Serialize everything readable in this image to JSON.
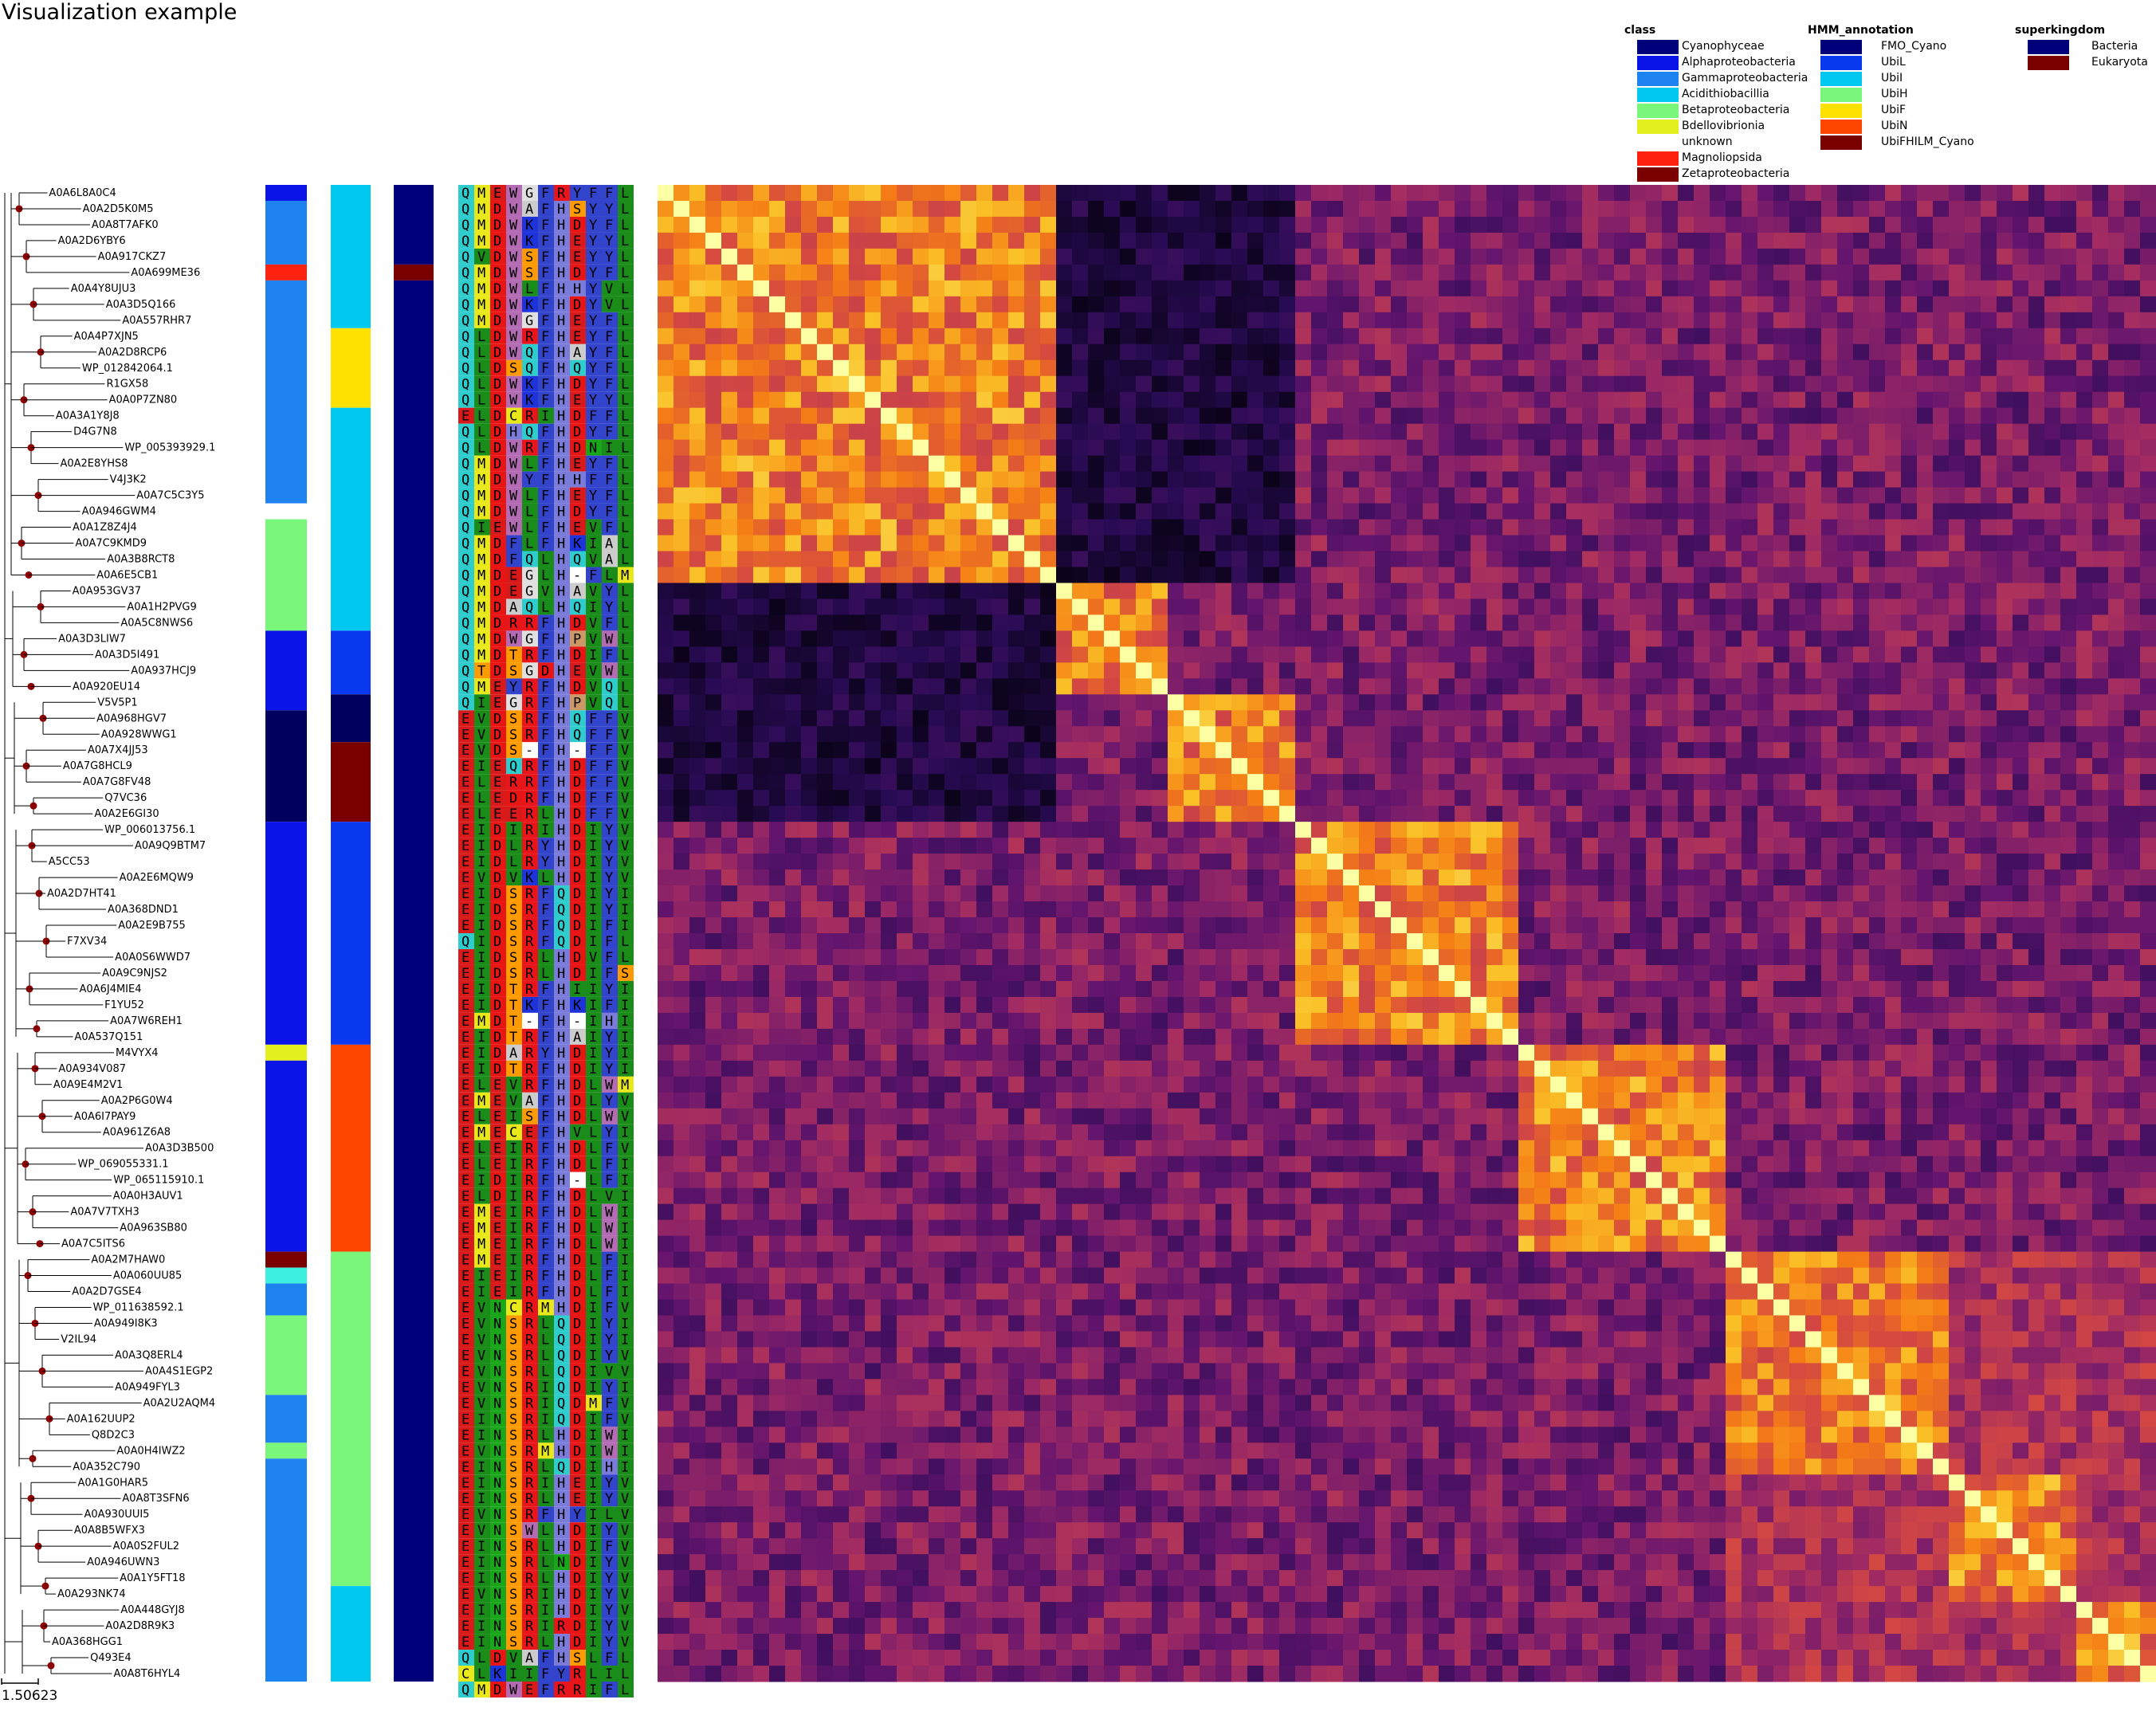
{
  "title": "Visualization example",
  "scale_label": "1.50623",
  "leaves": [
    "A0A6L8A0C4",
    "A0A2D5K0M5",
    "A0A8T7AFK0",
    "A0A2D6YBY6",
    "A0A917CKZ7",
    "A0A699ME36",
    "A0A4Y8UJU3",
    "A0A3D5Q166",
    "A0A557RHR7",
    "A0A4P7XJN5",
    "A0A2D8RCP6",
    "WP_012842064.1",
    "R1GX58",
    "A0A0P7ZN80",
    "A0A3A1Y8J8",
    "D4G7N8",
    "WP_005393929.1",
    "A0A2E8YHS8",
    "V4J3K2",
    "A0A7C5C3Y5",
    "A0A946GWM4",
    "A0A1Z8Z4J4",
    "A0A7C9KMD9",
    "A0A3B8RCT8",
    "A0A6E5CB1",
    "A0A953GV37",
    "A0A1H2PVG9",
    "A0A5C8NWS6",
    "A0A3D3LIW7",
    "A0A3D5I491",
    "A0A937HCJ9",
    "A0A920EU14",
    "V5V5P1",
    "A0A968HGV7",
    "A0A928WWG1",
    "A0A7X4JJ53",
    "A0A7G8HCL9",
    "A0A7G8FV48",
    "Q7VC36",
    "A0A2E6GI30",
    "WP_006013756.1",
    "A0A9Q9BTM7",
    "A5CC53",
    "A0A2E6MQW9",
    "A0A2D7HT41",
    "A0A368DND1",
    "A0A2E9B755",
    "F7XV34",
    "A0A0S6WWD7",
    "A0A9C9NJS2",
    "A0A6J4MIE4",
    "F1YU52",
    "A0A7W6REH1",
    "A0A537Q151",
    "M4VYX4",
    "A0A934V087",
    "A0A9E4M2V1",
    "A0A2P6G0W4",
    "A0A6I7PAY9",
    "A0A961Z6A8",
    "A0A3D3B500",
    "WP_069055331.1",
    "WP_065115910.1",
    "A0A0H3AUV1",
    "A0A7V7TXH3",
    "A0A963SB80",
    "A0A7C5ITS6",
    "A0A2M7HAW0",
    "A0A060UU85",
    "A0A2D7GSE4",
    "WP_011638592.1",
    "A0A949I8K3",
    "V2IL94",
    "A0A3Q8ERL4",
    "A0A4S1EGP2",
    "A0A949FYL3",
    "A0A2U2AQM4",
    "A0A162UUP2",
    "Q8D2C3",
    "A0A0H4IWZ2",
    "A0A352C790",
    "A0A1G0HAR5",
    "A0A8T3SFN6",
    "A0A930UUI5",
    "A0A8B5WFX3",
    "A0A0S2FUL2",
    "A0A946UWN3",
    "A0A1Y5FT18",
    "A0A293NK74",
    "A0A448GYJ8",
    "A0A2D8R9K3",
    "A0A368HGG1",
    "Q493E4",
    "A0A8T6HYL4"
  ],
  "alignment": [
    "QMEWGFRYFFL",
    "QMDWAFHSYYL",
    "QMDWKFHDYFL",
    "QMDWKFHEYYL",
    "QVDWSFHEYYL",
    "QMDWSFHDYFL",
    "QMDWLFHHYVL",
    "QMDWKFHDYVL",
    "QMDWGFHEYFL",
    "QLDWRFHEYFL",
    "QLDWQFHAYFL",
    "QLDSQFHQYFL",
    "QLDWKFHDYFL",
    "QLDWKFHEYYL",
    "ELDCRIHDFFL",
    "QLDHQFHDYFL",
    "QLDWRFHDNIL",
    "QMDWLFHEYFL",
    "QMDWYFHHFFL",
    "QMDWLFHEYFL",
    "QMDWLFHDYFL",
    "QIEWLFHEVFL",
    "QMDFLFHKIAL",
    "QMDFQLHQVAL",
    "QMDEGLH-FLM",
    "QMDEGVHAVYL",
    "QMDAQLHQIYL",
    "QMDRRFHDVFL",
    "QMDWGFHPVWL",
    "QMDTRFHDIFL",
    "QTDSGDHEVWL",
    "QMEYRFHDVQL",
    "QIEGRFHPVQL",
    "EVDSRFHQFFV",
    "EVDSRFHQFFV",
    "EVDS-FH-FFV",
    "EIEQRFHDFFV",
    "ELERRFHDFFV",
    "ELEDRFHDFFV",
    "ELEERLHDFFV",
    "EIDIRIHDIYV",
    "EIDLRYHDIYV",
    "EIDLRYHDIYV",
    "EVDVKLHDIYV",
    "EIDSRFQDIYI",
    "EIDSRFQDIYI",
    "EIDSRFQDIFI",
    "QIDSRFQDIFL",
    "EIDSRLHDVFL",
    "EIDSRLHDIFS",
    "EIDTRFHIIYI",
    "EIDTKFHKIFI",
    "EMDT-FH-IHI",
    "EIDTRFHAIYI",
    "EIDARYHDIYI",
    "EIDTRFHDIYI",
    "ELEVRFHDLWM",
    "EMEVAFHDLYV",
    "ELEISFHDLWV",
    "EMECEFHVLYI",
    "ELEIRFHDLFV",
    "ELEIRFHDLFI",
    "EIDIRFH-LFI",
    "ELDIRFHDLVI",
    "EMEIRFHDLWI",
    "EMEIRFHDLWI",
    "EMEIRFHDLWI",
    "EMEIRFHDLFI",
    "EIEIRFHDLFI",
    "EIEIRFHDLFI",
    "EVNCRMHDIFV",
    "EVNSRLQDIYI",
    "EVNSRLQDIYI",
    "EVNSRLQDIYV",
    "EVNSRLQDIVV",
    "EVNSRIQDIYI",
    "EVNSRIQDMFV",
    "EINSRIQDIFV",
    "EINSRLHDIWI",
    "EVNSRMHDIWI",
    "EINSRLQDIHI",
    "EINSRIHEIYV",
    "EINSRLHEIYV",
    "EVNSRFHYILV",
    "EVNSWLHDIYV",
    "EINSRLHDIFV",
    "EINSRLNDIYV",
    "EINSRLHDIYV",
    "EVNSRIHDIYV",
    "EINSRIHDIYV",
    "EINSRIRDIYV",
    "EINSRLHDIYV",
    "QLDVAFHSLFL",
    "CLKIIFYRLIL",
    "QMDWEFRRIFL"
  ],
  "bars": {
    "class": [
      [
        0,
        0.99
      ],
      [
        1,
        4.99
      ],
      [
        5,
        5.99
      ],
      [
        6,
        19.99
      ],
      [
        21,
        27.99
      ],
      [
        28,
        32.99
      ],
      [
        33,
        39.99
      ],
      [
        40,
        53.99
      ],
      [
        54,
        54.99
      ],
      [
        55,
        66.99
      ],
      [
        67,
        67.99
      ],
      [
        68,
        68.99
      ],
      [
        69,
        70.99
      ],
      [
        71,
        75.99
      ],
      [
        76,
        78.99
      ],
      [
        79,
        79.99
      ],
      [
        80,
        93.99
      ]
    ],
    "class_colors": [
      "#0a14e8",
      "#1e82f0",
      "#ff2210",
      "#1e82f0",
      "#7af77a",
      "#0a14e8",
      "#00005e",
      "#0a14e8",
      "#e3f020",
      "#0a14e8",
      "#7a0000",
      "#3cf0e0",
      "#1e82f0",
      "#7af77a",
      "#1e82f0",
      "#7af77a",
      "#1e82f0"
    ],
    "hmm": [
      [
        0,
        8.99
      ],
      [
        9,
        13.99
      ],
      [
        14,
        27.99
      ],
      [
        28,
        31.99
      ],
      [
        32,
        34.99
      ],
      [
        35,
        39.99
      ],
      [
        40,
        53.99
      ],
      [
        54,
        66.99
      ],
      [
        67,
        87.99
      ],
      [
        88,
        93.99
      ]
    ],
    "hmm_colors": [
      "#00c8f0",
      "#ffe100",
      "#00c8f0",
      "#0a3af0",
      "#00005e",
      "#7a0000",
      "#0a3af0",
      "#ff4600",
      "#7af77a",
      "#00c8f0"
    ],
    "kingdom": [
      [
        0,
        4.99
      ],
      [
        5,
        5.99
      ],
      [
        6,
        93.99
      ]
    ],
    "kingdom_colors": [
      "#00007a",
      "#7a0000",
      "#00007a"
    ]
  },
  "legend": {
    "class": {
      "title": "class",
      "items": [
        {
          "label": "Cyanophyceae",
          "color": "#00007a"
        },
        {
          "label": "Alphaproteobacteria",
          "color": "#0a14e8"
        },
        {
          "label": "Gammaproteobacteria",
          "color": "#1e82f0"
        },
        {
          "label": "Acidithiobacillia",
          "color": "#00c8f0"
        },
        {
          "label": "Betaproteobacteria",
          "color": "#7af77a"
        },
        {
          "label": "Bdellovibrionia",
          "color": "#e3f020"
        },
        {
          "label": "unknown",
          "color": "#ffffff"
        },
        {
          "label": "Magnoliopsida",
          "color": "#ff2210"
        },
        {
          "label": "Zetaproteobacteria",
          "color": "#7a0000"
        }
      ]
    },
    "hmm": {
      "title": "HMM_annotation",
      "items": [
        {
          "label": "FMO_Cyano",
          "color": "#00007a"
        },
        {
          "label": "UbiL",
          "color": "#0a3af0"
        },
        {
          "label": "UbiI",
          "color": "#00c8f0"
        },
        {
          "label": "UbiH",
          "color": "#7af77a"
        },
        {
          "label": "UbiF",
          "color": "#ffe100"
        },
        {
          "label": "UbiN",
          "color": "#ff4600"
        },
        {
          "label": "UbiFHILM_Cyano",
          "color": "#7a0000"
        }
      ]
    },
    "kingdom": {
      "title": "superkingdom",
      "items": [
        {
          "label": "Bacteria",
          "color": "#00007a"
        },
        {
          "label": "Eukaryota",
          "color": "#7a0000"
        }
      ]
    }
  },
  "heatmap_blocks": [
    [
      0,
      24
    ],
    [
      25,
      31
    ],
    [
      32,
      39
    ],
    [
      40,
      53
    ],
    [
      54,
      66
    ],
    [
      67,
      80
    ],
    [
      81,
      88
    ],
    [
      89,
      93
    ]
  ],
  "colors": {
    "aa_R": "#e8151a",
    "aa_K": "#1e33d9",
    "aa_H": "#7b7bd9",
    "aa_D": "#e81515",
    "aa_E": "#d91a1a",
    "aa_S": "#ff9a00",
    "aa_T": "#ff9a00",
    "aa_N": "#1aa61a",
    "aa_Q": "#2ecccc",
    "aa_A": "#cccccc",
    "aa_V": "#1a8c1a",
    "aa_L": "#1a8c1a",
    "aa_I": "#1a8c1a",
    "aa_M": "#e8e81a",
    "aa_F": "#3344cc",
    "aa_W": "#b36bb3",
    "aa_Y": "#3344cc",
    "aa_G": "#e0e0e0",
    "aa_C": "#e8e81a",
    "aa_P": "#cc9966",
    "aa_gap": "#ffffff"
  }
}
